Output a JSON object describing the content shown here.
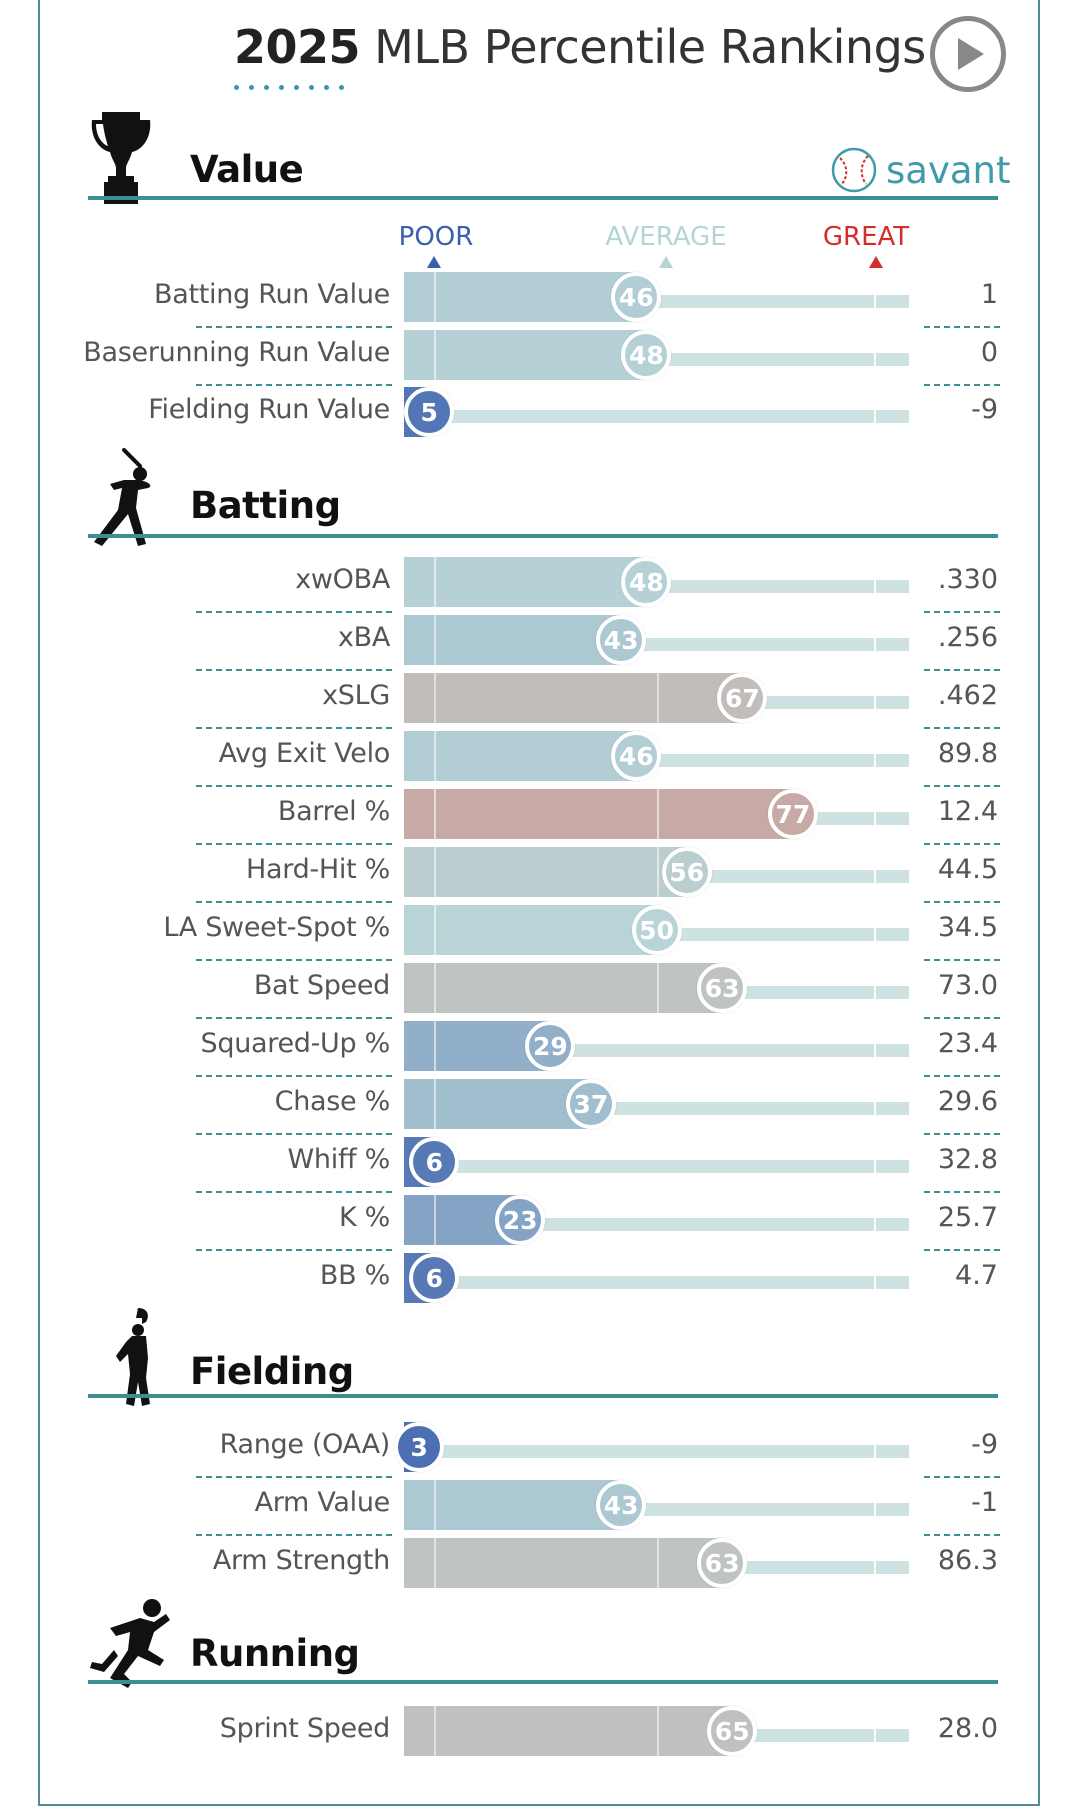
{
  "header": {
    "title_year": "2025",
    "title_rest": " MLB Percentile Rankings",
    "play_icon": "play-icon"
  },
  "scale": {
    "poor": "POOR",
    "average": "AVERAGE",
    "great": "GREAT",
    "colors": {
      "poor": "#3a5fae",
      "average": "#b4d4d6",
      "great": "#d42e2b"
    }
  },
  "logo": {
    "text": "savant",
    "icon": "baseball-icon"
  },
  "sections": [
    {
      "key": "value",
      "label": "Value",
      "icon": "trophy-icon"
    },
    {
      "key": "batting",
      "label": "Batting",
      "icon": "batter-icon"
    },
    {
      "key": "fielding",
      "label": "Fielding",
      "icon": "fielder-icon"
    },
    {
      "key": "running",
      "label": "Running",
      "icon": "runner-icon"
    }
  ],
  "chart_data": {
    "type": "bar",
    "title": "2025 MLB Percentile Rankings",
    "xlim": [
      0,
      100
    ],
    "scale_labels": [
      "POOR",
      "AVERAGE",
      "GREAT"
    ],
    "rows": [
      {
        "section": "Value",
        "metric": "Batting Run Value",
        "percentile": 46,
        "value": "1"
      },
      {
        "section": "Value",
        "metric": "Baserunning Run Value",
        "percentile": 48,
        "value": "0"
      },
      {
        "section": "Value",
        "metric": "Fielding Run Value",
        "percentile": 5,
        "value": "-9"
      },
      {
        "section": "Batting",
        "metric": "xwOBA",
        "percentile": 48,
        "value": ".330"
      },
      {
        "section": "Batting",
        "metric": "xBA",
        "percentile": 43,
        "value": ".256"
      },
      {
        "section": "Batting",
        "metric": "xSLG",
        "percentile": 67,
        "value": ".462"
      },
      {
        "section": "Batting",
        "metric": "Avg Exit Velo",
        "percentile": 46,
        "value": "89.8"
      },
      {
        "section": "Batting",
        "metric": "Barrel %",
        "percentile": 77,
        "value": "12.4"
      },
      {
        "section": "Batting",
        "metric": "Hard-Hit %",
        "percentile": 56,
        "value": "44.5"
      },
      {
        "section": "Batting",
        "metric": "LA Sweet-Spot %",
        "percentile": 50,
        "value": "34.5"
      },
      {
        "section": "Batting",
        "metric": "Bat Speed",
        "percentile": 63,
        "value": "73.0"
      },
      {
        "section": "Batting",
        "metric": "Squared-Up %",
        "percentile": 29,
        "value": "23.4"
      },
      {
        "section": "Batting",
        "metric": "Chase %",
        "percentile": 37,
        "value": "29.6"
      },
      {
        "section": "Batting",
        "metric": "Whiff %",
        "percentile": 6,
        "value": "32.8"
      },
      {
        "section": "Batting",
        "metric": "K %",
        "percentile": 23,
        "value": "25.7"
      },
      {
        "section": "Batting",
        "metric": "BB %",
        "percentile": 6,
        "value": "4.7"
      },
      {
        "section": "Fielding",
        "metric": "Range (OAA)",
        "percentile": 3,
        "value": "-9"
      },
      {
        "section": "Fielding",
        "metric": "Arm Value",
        "percentile": 43,
        "value": "-1"
      },
      {
        "section": "Fielding",
        "metric": "Arm Strength",
        "percentile": 63,
        "value": "86.3"
      },
      {
        "section": "Running",
        "metric": "Sprint Speed",
        "percentile": 65,
        "value": "28.0"
      }
    ]
  }
}
